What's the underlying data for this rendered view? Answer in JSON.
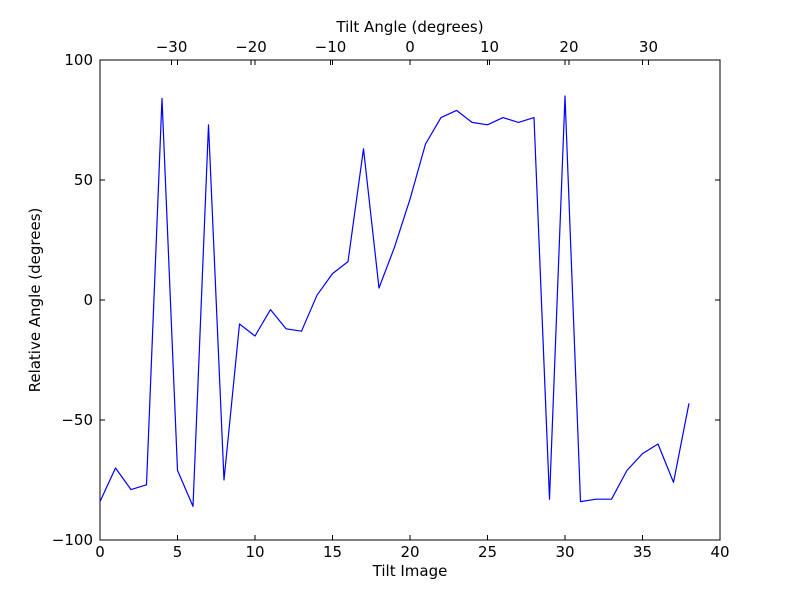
{
  "chart_data": {
    "type": "line",
    "title": "",
    "xlabel": "Tilt Image",
    "ylabel": "Relative Angle (degrees)",
    "top_xlabel": "Tilt Angle (degrees)",
    "xlim": [
      0,
      40
    ],
    "ylim": [
      -100,
      100
    ],
    "top_xlim": [
      -39,
      39
    ],
    "x_ticks": [
      0,
      5,
      10,
      15,
      20,
      25,
      30,
      35,
      40
    ],
    "x_tick_labels": [
      "0",
      "5",
      "10",
      "15",
      "20",
      "25",
      "30",
      "35",
      "40"
    ],
    "y_ticks": [
      -100,
      -50,
      0,
      50,
      100
    ],
    "y_tick_labels": [
      "−100",
      "−50",
      "0",
      "50",
      "100"
    ],
    "top_ticks": [
      -30,
      -20,
      -10,
      0,
      10,
      20,
      30
    ],
    "top_tick_labels": [
      "−30",
      "−20",
      "−10",
      "0",
      "10",
      "20",
      "30"
    ],
    "grid": false,
    "legend": "none",
    "line_color": "#0000ff",
    "x": [
      0,
      1,
      2,
      3,
      4,
      5,
      6,
      7,
      8,
      9,
      10,
      11,
      12,
      13,
      14,
      15,
      16,
      17,
      18,
      19,
      20,
      21,
      22,
      23,
      24,
      25,
      26,
      27,
      28,
      29,
      30,
      31,
      32,
      33,
      34,
      35,
      36,
      37,
      38
    ],
    "series": [
      {
        "values": [
          -84,
          -70,
          -79,
          -77,
          84,
          -71,
          -86,
          73,
          -75,
          -10,
          -15,
          -4,
          -12,
          -13,
          2,
          11,
          16,
          63,
          5,
          22,
          42,
          65,
          76,
          79,
          74,
          73,
          76,
          74,
          76,
          -83,
          85,
          -84,
          -83,
          -83,
          -71,
          -64,
          -60,
          -76,
          -43
        ]
      }
    ]
  }
}
